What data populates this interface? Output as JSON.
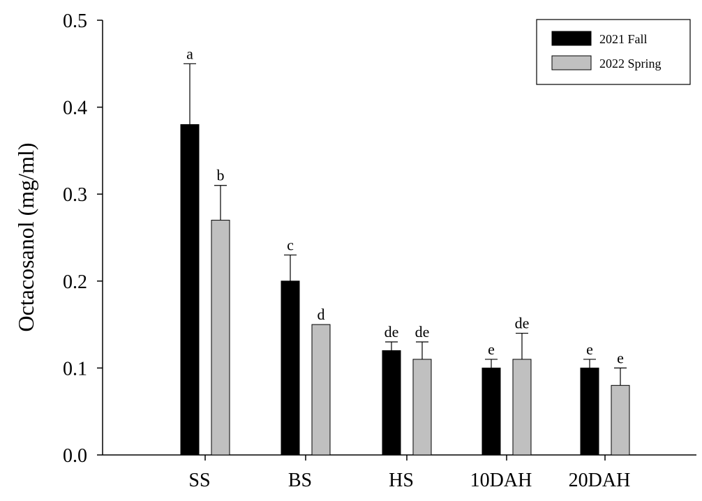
{
  "chart_data": {
    "type": "bar",
    "title": "",
    "xlabel": "",
    "ylabel": "Octacosanol (mg/ml)",
    "ylim": [
      0,
      0.5
    ],
    "yticks": [
      "0.0",
      "0.1",
      "0.2",
      "0.3",
      "0.4",
      "0.5"
    ],
    "categories": [
      "SS",
      "BS",
      "HS",
      "10DAH",
      "20DAH"
    ],
    "series": [
      {
        "name": "2021 Fall",
        "color": "#000000",
        "values": [
          0.38,
          0.2,
          0.12,
          0.1,
          0.1
        ],
        "errors": [
          0.07,
          0.03,
          0.01,
          0.01,
          0.01
        ],
        "labels": [
          "a",
          "c",
          "de",
          "e",
          "e"
        ]
      },
      {
        "name": "2022 Spring",
        "color": "#c0c0c0",
        "values": [
          0.27,
          0.15,
          0.11,
          0.11,
          0.08
        ],
        "errors": [
          0.04,
          0.0,
          0.02,
          0.03,
          0.02
        ],
        "labels": [
          "b",
          "d",
          "de",
          "de",
          "e"
        ]
      }
    ],
    "legend": "top-right",
    "grid": false
  }
}
